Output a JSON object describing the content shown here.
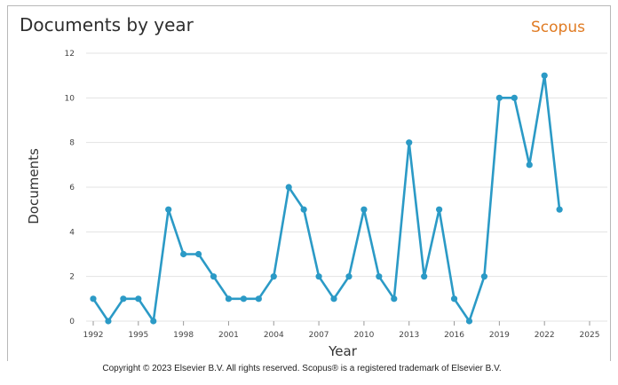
{
  "header": {
    "title": "Documents by year",
    "brand": "Scopus"
  },
  "footer": {
    "copyright": "Copyright © 2023 Elsevier B.V. All rights reserved. Scopus® is a registered trademark of Elsevier B.V."
  },
  "colors": {
    "line": "#2b9ac6",
    "brand": "#e07b23",
    "grid": "#e3e3e3"
  },
  "chart_data": {
    "type": "line",
    "title": "Documents by year",
    "xlabel": "Year",
    "ylabel": "Documents",
    "xlim": [
      1992,
      2025
    ],
    "ylim": [
      0,
      12
    ],
    "x_ticks": [
      "1992",
      "1995",
      "1998",
      "2001",
      "2004",
      "2007",
      "2010",
      "2013",
      "2016",
      "2019",
      "2022",
      "2025"
    ],
    "y_ticks": [
      "0",
      "2",
      "4",
      "6",
      "8",
      "10",
      "12"
    ],
    "grid": "horizontal",
    "series": [
      {
        "x": [
          1992,
          1993,
          1994,
          1995,
          1996,
          1997,
          1998,
          1999,
          2000,
          2001,
          2002,
          2003,
          2004,
          2005,
          2006,
          2007,
          2008,
          2009,
          2010,
          2011,
          2012,
          2013,
          2014,
          2015,
          2016,
          2017,
          2018,
          2019,
          2020,
          2021,
          2022,
          2023
        ],
        "values": [
          1,
          0,
          1,
          1,
          0,
          5,
          3,
          3,
          2,
          1,
          1,
          1,
          2,
          6,
          5,
          2,
          1,
          2,
          5,
          2,
          1,
          8,
          2,
          5,
          1,
          0,
          2,
          10,
          10,
          7,
          11,
          5
        ]
      }
    ]
  }
}
